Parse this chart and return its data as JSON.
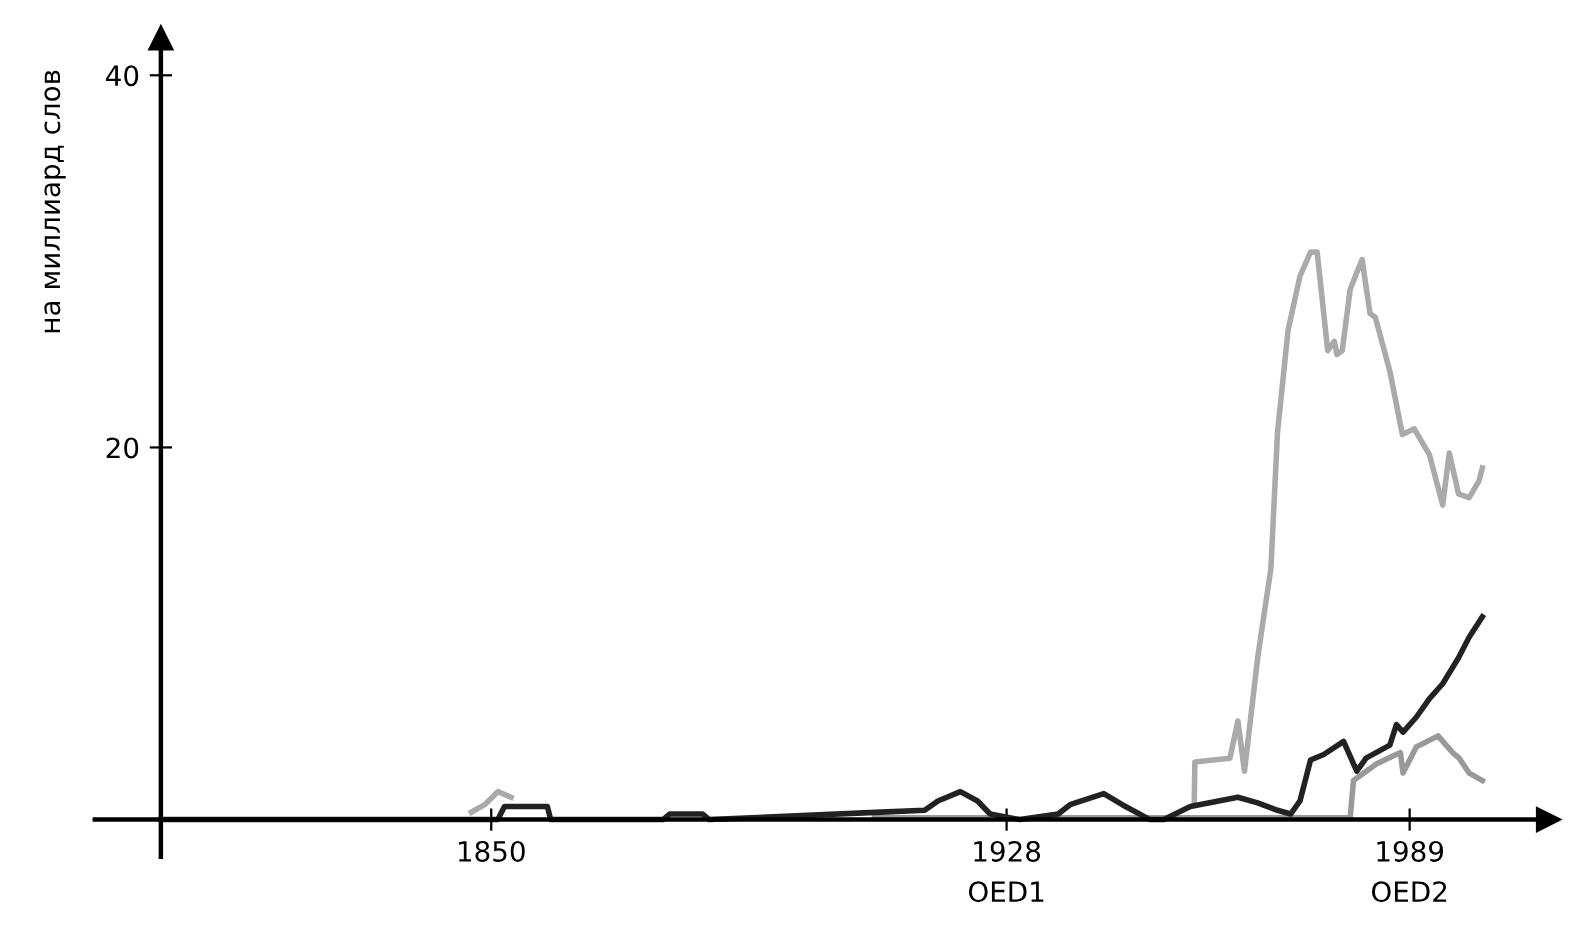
{
  "chart_data": {
    "type": "line",
    "ylabel": "на миллиард слов",
    "xlim": [
      1790,
      2010
    ],
    "ylim": [
      -2,
      42
    ],
    "xticks": [
      1850,
      1928,
      1989
    ],
    "annotations": [
      "OED1",
      "OED2"
    ],
    "yticks": [
      {
        "value": 0,
        "label": null
      },
      20,
      40
    ],
    "grid": false,
    "legend": false,
    "marker": "none",
    "line_style": "solid",
    "series": [
      {
        "color": "#aaaaaa",
        "x": [
          1847,
          1849,
          1851,
          1853,
          1855,
          1956.4,
          1956.5,
          1961.8,
          1963,
          1964,
          1966,
          1968,
          1969,
          1970.6,
          1972.4,
          1974,
          1975,
          1976.6,
          1977.6,
          1978,
          1978.8,
          1980,
          1981.8,
          1983,
          1983.8,
          1986,
          1987.9,
          1989.7,
          1992,
          1994,
          1995,
          1996.4,
          1998,
          1999.5,
          2000
        ],
        "values": [
          0.4,
          0.8,
          1.5,
          1.2,
          null,
          1.0,
          3.1,
          3.3,
          5.3,
          2.6,
          8.7,
          13.5,
          20.8,
          26.3,
          29.2,
          30.5,
          30.5,
          25.2,
          25.7,
          25.0,
          25.2,
          28.5,
          30.1,
          27.2,
          27.0,
          24.1,
          20.7,
          21.0,
          19.6,
          16.9,
          19.7,
          17.5,
          17.3,
          18.2,
          18.9
        ]
      },
      {
        "color": "#999999",
        "x": [
          1908,
          1925,
          1926,
          1935,
          1948,
          1956,
          1980,
          1980.5,
          1984,
          1987.6,
          1988,
          1990,
          1993.3,
          1995.5,
          1996.5,
          1998,
          2000
        ],
        "values": [
          0.1,
          0.1,
          null,
          0.1,
          0.1,
          0.1,
          0.1,
          2.1,
          3.0,
          3.6,
          2.5,
          3.9,
          4.5,
          3.6,
          3.3,
          2.5,
          2.1
        ]
      },
      {
        "color": "#222222",
        "x": [
          1800,
          1851,
          1852,
          1858.5,
          1859,
          1876,
          1877,
          1882,
          1883,
          1909,
          1915.6,
          1917.6,
          1921,
          1923.6,
          1925.5,
          1930,
          1935.8,
          1937.6,
          1942.7,
          1945.5,
          1949.7,
          1951.8,
          1955.8,
          1963,
          1966,
          1969,
          1971,
          1972.4,
          1974,
          1976,
          1979,
          1981,
          1982.4,
          1986,
          1987,
          1988,
          1990,
          1992,
          1994,
          1996.4,
          1998,
          2000
        ],
        "values": [
          0,
          0,
          0.7,
          0.7,
          0,
          0,
          0.3,
          0.3,
          0,
          0.4,
          0.5,
          1.0,
          1.5,
          1.0,
          0.3,
          0,
          0.3,
          0.8,
          1.4,
          0.8,
          0,
          0,
          0.7,
          1.2,
          0.9,
          0.5,
          0.3,
          1.0,
          3.2,
          3.5,
          4.2,
          2.6,
          3.3,
          4.0,
          5.1,
          4.7,
          5.5,
          6.5,
          7.3,
          8.7,
          9.8,
          10.9
        ]
      }
    ]
  }
}
